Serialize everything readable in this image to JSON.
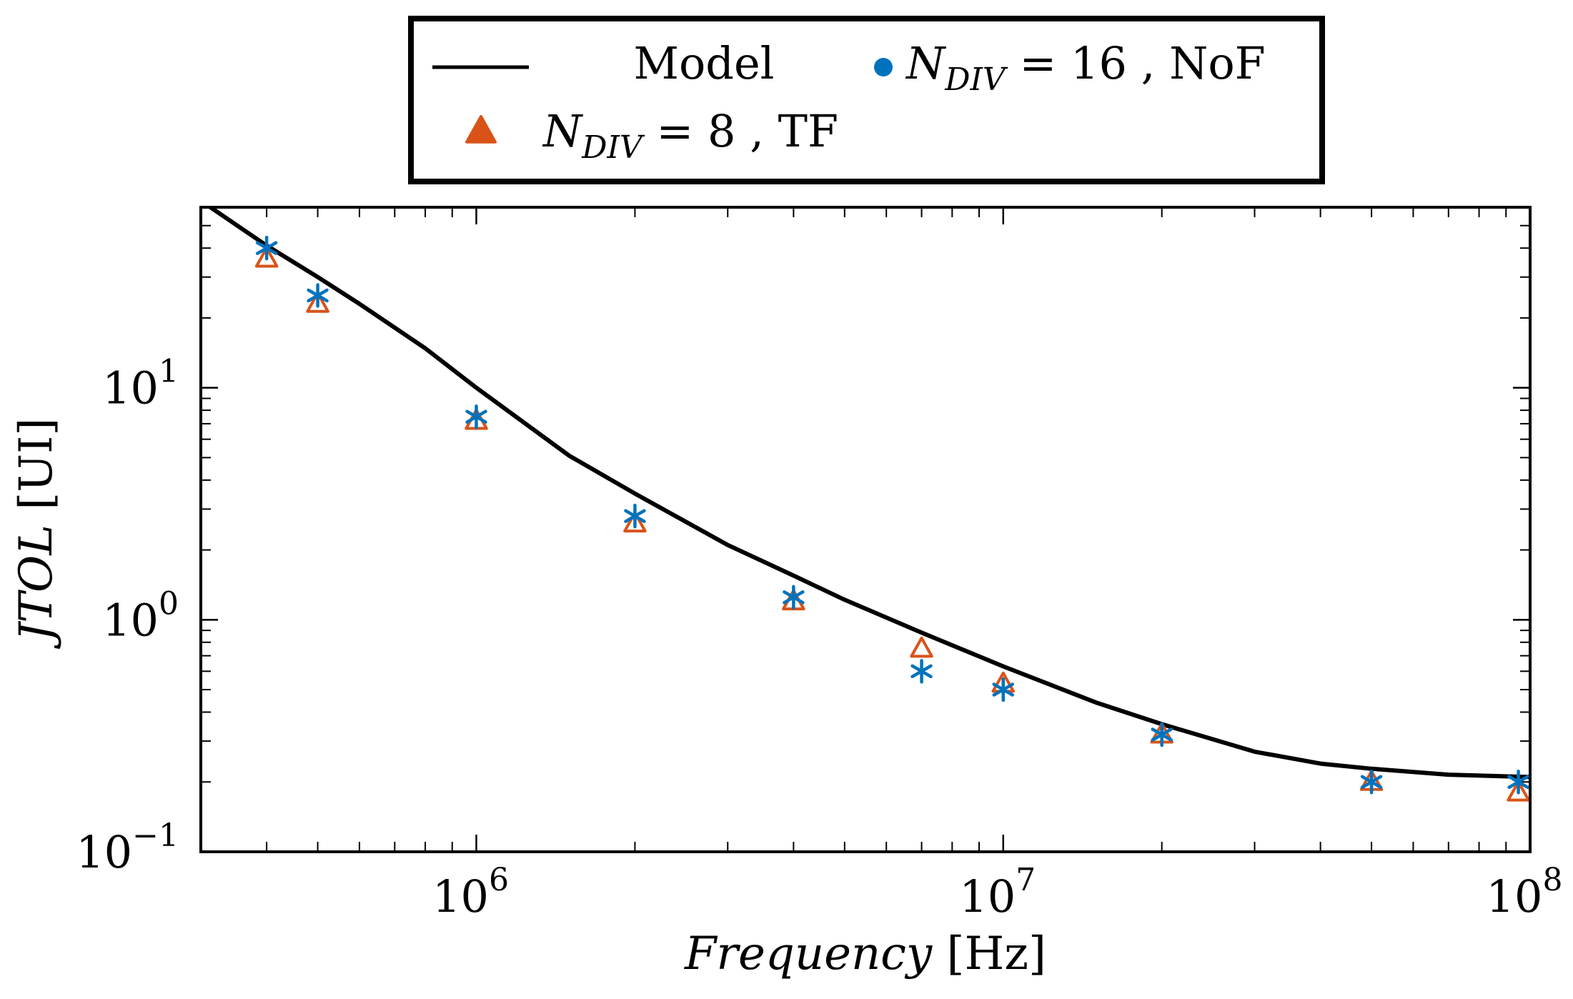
{
  "chart_data": {
    "type": "scatter",
    "xscale": "log",
    "yscale": "log",
    "xlabel": {
      "italic": "Frequency",
      "unit": "[Hz]"
    },
    "ylabel": {
      "italic": "JTOL",
      "unit": "[UI]"
    },
    "xlim": [
      300000,
      100000000
    ],
    "ylim": [
      0.1,
      60
    ],
    "xticks": [
      {
        "value": 1000000,
        "base": "10",
        "exp": "6"
      },
      {
        "value": 10000000,
        "base": "10",
        "exp": "7"
      },
      {
        "value": 100000000,
        "base": "10",
        "exp": "8"
      }
    ],
    "yticks": [
      {
        "value": 0.1,
        "base": "10",
        "exp": "−1"
      },
      {
        "value": 1,
        "base": "10",
        "exp": "0"
      },
      {
        "value": 10,
        "base": "10",
        "exp": "1"
      }
    ],
    "legend": {
      "placement": "top-center",
      "entries": [
        {
          "series": "model",
          "label": "Model"
        },
        {
          "series": "ndiv16",
          "label_main": "N",
          "label_sub": "DIV",
          "label_rest": " = 16 , NoF"
        },
        {
          "series": "ndiv8",
          "label_main": "N",
          "label_sub": "DIV",
          "label_rest": " = 8 , TF"
        }
      ]
    },
    "series": [
      {
        "id": "model",
        "name": "Model",
        "style": "line",
        "color": "#000000",
        "x": [
          300000,
          400000,
          500000,
          600000,
          800000,
          1000000,
          1500000,
          2000000,
          3000000,
          4000000,
          5000000,
          7000000,
          10000000,
          15000000,
          20000000,
          30000000,
          40000000,
          50000000,
          70000000,
          100000000
        ],
        "y": [
          64,
          41,
          30,
          23,
          14.8,
          10,
          5.1,
          3.5,
          2.1,
          1.55,
          1.22,
          0.88,
          0.63,
          0.44,
          0.355,
          0.27,
          0.24,
          0.228,
          0.215,
          0.21
        ]
      },
      {
        "id": "ndiv16",
        "name": "N_DIV = 16, NoF",
        "style": "asterisk",
        "color": "#0072BD",
        "x": [
          400000,
          500000,
          1000000,
          2000000,
          4000000,
          7000000,
          10000000,
          20000000,
          50000000,
          95000000
        ],
        "y": [
          40,
          25,
          7.5,
          2.8,
          1.25,
          0.6,
          0.5,
          0.32,
          0.2,
          0.2
        ]
      },
      {
        "id": "ndiv8",
        "name": "N_DIV = 8, TF",
        "style": "triangle",
        "color": "#D95319",
        "x": [
          400000,
          500000,
          1000000,
          2000000,
          4000000,
          7000000,
          10000000,
          20000000,
          50000000,
          95000000
        ],
        "y": [
          36,
          23,
          7.2,
          2.6,
          1.2,
          0.75,
          0.53,
          0.32,
          0.2,
          0.18
        ]
      }
    ]
  }
}
